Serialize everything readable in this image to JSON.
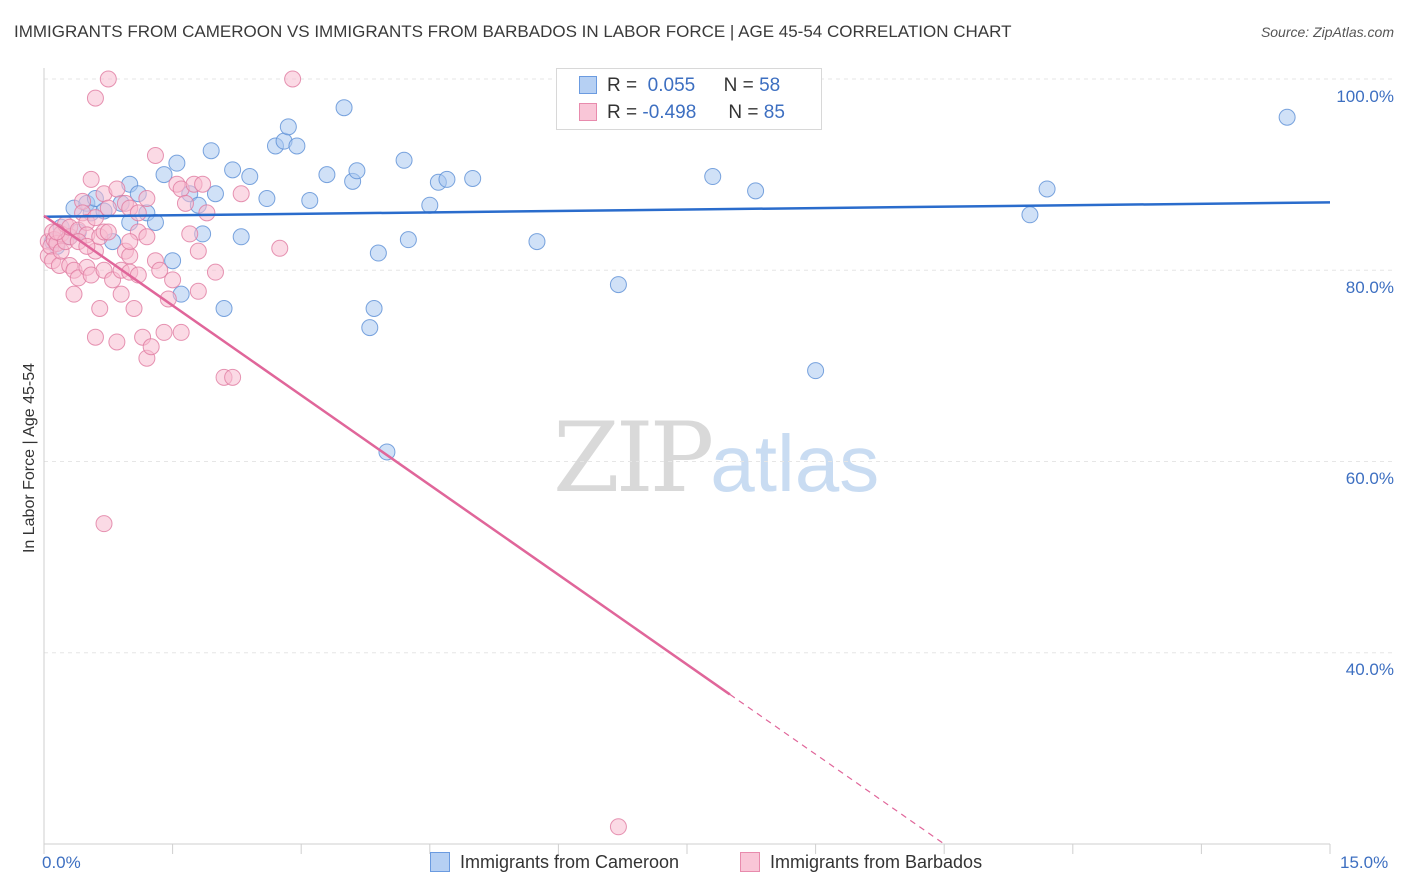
{
  "title": "IMMIGRANTS FROM CAMEROON VS IMMIGRANTS FROM BARBADOS IN LABOR FORCE | AGE 45-54 CORRELATION CHART",
  "source": "Source: ZipAtlas.com",
  "watermark": {
    "zip": "ZIP",
    "atlas": "atlas"
  },
  "legend": {
    "rows": [
      {
        "r_label": "R =",
        "r_value": "0.055",
        "n_label": "N =",
        "n_value": "58"
      },
      {
        "r_label": "R =",
        "r_value": "-0.498",
        "n_label": "N =",
        "n_value": "85"
      }
    ]
  },
  "colors": {
    "cameroon_fill": "#a9c8f0",
    "cameroon_stroke": "#5b8fd6",
    "cameroon_line": "#2a6ccc",
    "barbados_fill": "#f7bcd0",
    "barbados_stroke": "#e07aa0",
    "barbados_line": "#e0669a",
    "tick_text": "#3d6fc1",
    "grid": "#e6e6e6"
  },
  "chart_data": {
    "type": "scatter",
    "title": "IMMIGRANTS FROM CAMEROON VS IMMIGRANTS FROM BARBADOS IN LABOR FORCE | AGE 45-54 CORRELATION CHART",
    "xlabel": "",
    "ylabel": "In Labor Force | Age 45-54",
    "xlim": [
      0,
      15
    ],
    "ylim": [
      20,
      100
    ],
    "x_tick_labels": [
      "0.0%",
      "15.0%"
    ],
    "y_ticks": [
      40,
      60,
      80,
      100
    ],
    "y_tick_labels": [
      "40.0%",
      "60.0%",
      "80.0%",
      "100.0%"
    ],
    "grid": true,
    "legend_position": "bottom",
    "series": [
      {
        "name": "Immigrants from Cameroon",
        "r": 0.055,
        "n": 58,
        "trend": {
          "x": [
            0,
            15
          ],
          "y": [
            85.6,
            87.1
          ],
          "dashed_from": null
        },
        "points": [
          [
            0.1,
            83.0
          ],
          [
            0.15,
            82.5
          ],
          [
            0.2,
            84.5
          ],
          [
            0.3,
            83.5
          ],
          [
            0.35,
            86.5
          ],
          [
            0.4,
            84.0
          ],
          [
            0.5,
            87.0
          ],
          [
            0.55,
            86.0
          ],
          [
            0.6,
            87.5
          ],
          [
            0.7,
            86.2
          ],
          [
            0.8,
            83.0
          ],
          [
            0.9,
            87.0
          ],
          [
            1.0,
            89.0
          ],
          [
            1.0,
            85.0
          ],
          [
            1.1,
            88.0
          ],
          [
            1.2,
            86.0
          ],
          [
            1.3,
            85.0
          ],
          [
            1.4,
            90.0
          ],
          [
            1.5,
            81.0
          ],
          [
            1.55,
            91.2
          ],
          [
            1.6,
            77.5
          ],
          [
            1.7,
            88.0
          ],
          [
            1.8,
            86.8
          ],
          [
            1.85,
            83.8
          ],
          [
            1.95,
            92.5
          ],
          [
            2.0,
            88.0
          ],
          [
            2.1,
            76.0
          ],
          [
            2.2,
            90.5
          ],
          [
            2.3,
            83.5
          ],
          [
            2.4,
            89.8
          ],
          [
            2.6,
            87.5
          ],
          [
            2.7,
            93.0
          ],
          [
            2.8,
            93.5
          ],
          [
            2.85,
            95.0
          ],
          [
            2.95,
            93.0
          ],
          [
            3.1,
            87.3
          ],
          [
            3.3,
            90.0
          ],
          [
            3.5,
            97.0
          ],
          [
            3.6,
            89.3
          ],
          [
            3.65,
            90.4
          ],
          [
            3.8,
            74.0
          ],
          [
            3.85,
            76.0
          ],
          [
            3.9,
            81.8
          ],
          [
            4.0,
            61.0
          ],
          [
            4.2,
            91.5
          ],
          [
            4.25,
            83.2
          ],
          [
            4.5,
            86.8
          ],
          [
            4.6,
            89.2
          ],
          [
            4.7,
            89.5
          ],
          [
            5.0,
            89.6
          ],
          [
            5.75,
            83.0
          ],
          [
            6.7,
            78.5
          ],
          [
            7.8,
            89.8
          ],
          [
            8.3,
            88.3
          ],
          [
            9.0,
            69.5
          ],
          [
            11.5,
            85.8
          ],
          [
            11.7,
            88.5
          ],
          [
            14.5,
            96.0
          ]
        ]
      },
      {
        "name": "Immigrants from Barbados",
        "r": -0.498,
        "n": 85,
        "trend": {
          "x": [
            0,
            10.5
          ],
          "y": [
            85.7,
            20.0
          ],
          "dashed_from": 8.0
        },
        "points": [
          [
            0.05,
            83.0
          ],
          [
            0.05,
            81.5
          ],
          [
            0.08,
            82.5
          ],
          [
            0.1,
            84.0
          ],
          [
            0.1,
            81.0
          ],
          [
            0.12,
            83.2
          ],
          [
            0.15,
            82.8
          ],
          [
            0.18,
            80.5
          ],
          [
            0.2,
            83.8
          ],
          [
            0.2,
            82.0
          ],
          [
            0.25,
            84.8
          ],
          [
            0.25,
            83.0
          ],
          [
            0.3,
            80.5
          ],
          [
            0.3,
            83.5
          ],
          [
            0.3,
            84.5
          ],
          [
            0.35,
            77.5
          ],
          [
            0.35,
            80.0
          ],
          [
            0.4,
            79.2
          ],
          [
            0.4,
            84.2
          ],
          [
            0.45,
            87.2
          ],
          [
            0.45,
            86.0
          ],
          [
            0.5,
            85.0
          ],
          [
            0.5,
            80.3
          ],
          [
            0.5,
            83.7
          ],
          [
            0.55,
            89.5
          ],
          [
            0.55,
            79.5
          ],
          [
            0.6,
            73.0
          ],
          [
            0.6,
            82.0
          ],
          [
            0.6,
            85.5
          ],
          [
            0.6,
            98.0
          ],
          [
            0.65,
            83.5
          ],
          [
            0.65,
            76.0
          ],
          [
            0.7,
            88.0
          ],
          [
            0.7,
            80.0
          ],
          [
            0.7,
            84.0
          ],
          [
            0.7,
            53.5
          ],
          [
            0.75,
            100.0
          ],
          [
            0.75,
            84.0
          ],
          [
            0.75,
            86.5
          ],
          [
            0.8,
            79.0
          ],
          [
            0.85,
            72.5
          ],
          [
            0.85,
            88.5
          ],
          [
            0.9,
            77.5
          ],
          [
            0.9,
            80.0
          ],
          [
            0.95,
            87.0
          ],
          [
            0.95,
            82.0
          ],
          [
            1.0,
            86.5
          ],
          [
            1.0,
            81.5
          ],
          [
            1.0,
            79.8
          ],
          [
            1.05,
            76.0
          ],
          [
            1.1,
            86.0
          ],
          [
            1.1,
            84.0
          ],
          [
            1.1,
            79.5
          ],
          [
            1.15,
            73.0
          ],
          [
            1.2,
            83.5
          ],
          [
            1.2,
            87.5
          ],
          [
            1.2,
            70.8
          ],
          [
            1.25,
            72.0
          ],
          [
            1.3,
            81.0
          ],
          [
            1.3,
            92.0
          ],
          [
            1.35,
            80.0
          ],
          [
            1.4,
            73.5
          ],
          [
            1.45,
            77.0
          ],
          [
            1.5,
            79.0
          ],
          [
            1.55,
            89.0
          ],
          [
            1.6,
            73.5
          ],
          [
            1.6,
            88.5
          ],
          [
            1.65,
            87.0
          ],
          [
            1.7,
            83.8
          ],
          [
            1.75,
            89.0
          ],
          [
            1.8,
            82.0
          ],
          [
            1.8,
            77.8
          ],
          [
            1.85,
            89.0
          ],
          [
            1.9,
            86.0
          ],
          [
            2.0,
            79.8
          ],
          [
            2.1,
            68.8
          ],
          [
            2.2,
            68.8
          ],
          [
            2.3,
            88.0
          ],
          [
            2.75,
            82.3
          ],
          [
            2.9,
            100.0
          ],
          [
            0.4,
            83.0
          ],
          [
            0.15,
            84.0
          ],
          [
            0.5,
            82.5
          ],
          [
            1.0,
            83.0
          ],
          [
            6.7,
            21.8
          ]
        ]
      }
    ]
  },
  "bottom_legend": [
    "Immigrants from Cameroon",
    "Immigrants from Barbados"
  ]
}
